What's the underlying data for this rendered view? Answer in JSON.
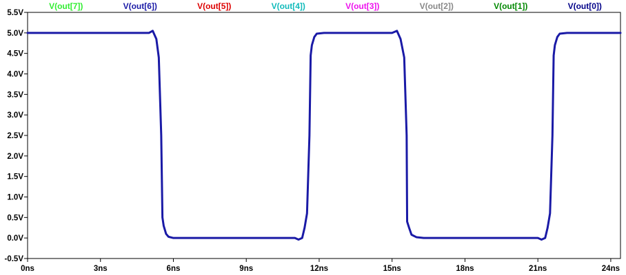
{
  "chart_data": {
    "type": "line",
    "title": "",
    "xlabel": "",
    "ylabel": "",
    "xlim": [
      0,
      24.4
    ],
    "ylim": [
      -0.5,
      5.5
    ],
    "grid": false,
    "legend_placement": "top",
    "x_ticks": [
      0,
      3,
      6,
      9,
      12,
      15,
      18,
      21,
      24
    ],
    "x_tick_labels": [
      "0ns",
      "3ns",
      "6ns",
      "9ns",
      "12ns",
      "15ns",
      "18ns",
      "21ns",
      "24ns"
    ],
    "y_ticks": [
      -0.5,
      0.0,
      0.5,
      1.0,
      1.5,
      2.0,
      2.5,
      3.0,
      3.5,
      4.0,
      4.5,
      5.0,
      5.5
    ],
    "y_tick_labels": [
      "-0.5V",
      "0.0V",
      "0.5V",
      "1.0V",
      "1.5V",
      "2.0V",
      "2.5V",
      "3.0V",
      "3.5V",
      "4.0V",
      "4.5V",
      "5.0V",
      "5.5V"
    ],
    "legend": [
      {
        "name": "V(out[7])",
        "color": "#33ee33"
      },
      {
        "name": "V(out[6])",
        "color": "#1a1aa6"
      },
      {
        "name": "V(out[5])",
        "color": "#dd0000"
      },
      {
        "name": "V(out[4])",
        "color": "#11bbbb"
      },
      {
        "name": "V(out[3])",
        "color": "#ee11ee"
      },
      {
        "name": "V(out[2])",
        "color": "#888888"
      },
      {
        "name": "V(out[1])",
        "color": "#008800"
      },
      {
        "name": "V(out[0])",
        "color": "#000088"
      }
    ],
    "series": [
      {
        "name": "V(out[6])",
        "color": "#1a1aa6",
        "x": [
          0,
          5.0,
          5.15,
          5.3,
          5.4,
          5.5,
          5.55,
          5.6,
          5.7,
          5.8,
          6.0,
          6.3,
          11.0,
          11.15,
          11.3,
          11.4,
          11.5,
          11.6,
          11.65,
          11.7,
          11.8,
          11.9,
          12.2,
          15.0,
          15.2,
          15.35,
          15.5,
          15.6,
          15.62,
          15.7,
          15.8,
          16.0,
          16.3,
          21.0,
          21.15,
          21.3,
          21.4,
          21.5,
          21.6,
          21.65,
          21.7,
          21.8,
          21.9,
          22.2,
          24.4
        ],
        "y": [
          5.0,
          5.0,
          5.05,
          4.85,
          4.4,
          2.5,
          0.5,
          0.3,
          0.1,
          0.03,
          0.0,
          0.0,
          0.0,
          -0.04,
          0.0,
          0.25,
          0.6,
          2.5,
          4.45,
          4.7,
          4.9,
          4.98,
          5.0,
          5.0,
          5.05,
          4.85,
          4.4,
          2.5,
          0.4,
          0.25,
          0.08,
          0.02,
          0.0,
          0.0,
          -0.04,
          0.0,
          0.25,
          0.6,
          2.5,
          4.45,
          4.7,
          4.9,
          4.98,
          5.0,
          5.0
        ]
      }
    ]
  }
}
